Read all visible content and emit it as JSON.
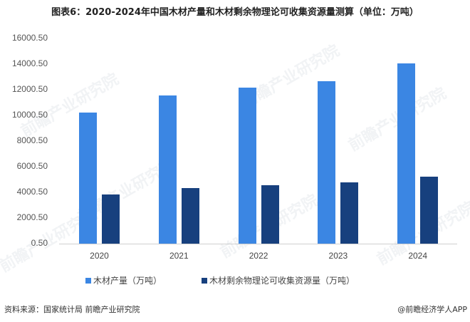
{
  "title": "图表6：2020-2024年中国木材产量和木材剩余物理论可收集资源量测算（单位：万吨）",
  "chart_data": {
    "type": "bar",
    "title": "图表6：2020-2024年中国木材产量和木材剩余物理论可收集资源量测算（单位：万吨）",
    "xlabel": "",
    "ylabel": "",
    "categories": [
      "2020",
      "2021",
      "2022",
      "2023",
      "2024"
    ],
    "series": [
      {
        "name": "木材产量（万吨）",
        "color": "#3B86E3",
        "values": [
          10200,
          11550,
          12170,
          12670,
          14050
        ]
      },
      {
        "name": "木材剩余物理论可收集资源量（万吨）",
        "color": "#17407E",
        "values": [
          3830,
          4330,
          4550,
          4780,
          5220
        ]
      }
    ],
    "yticks": [
      "0.50",
      "2000.50",
      "4000.50",
      "6000.50",
      "8000.50",
      "10000.50",
      "12000.50",
      "14000.50",
      "16000.50"
    ],
    "ylim": [
      0.5,
      16000.5
    ],
    "grid": false,
    "legend_position": "bottom"
  },
  "legend": {
    "items": [
      {
        "label": "木材产量（万吨）",
        "color": "#3B86E3"
      },
      {
        "label": "木材剩余物理论可收集资源量（万吨）",
        "color": "#17407E"
      }
    ]
  },
  "footer": {
    "source": "资料来源：国家统计局 前瞻产业研究院",
    "credit": "@前瞻经济学人APP"
  },
  "watermark": "前瞻产业研究院"
}
